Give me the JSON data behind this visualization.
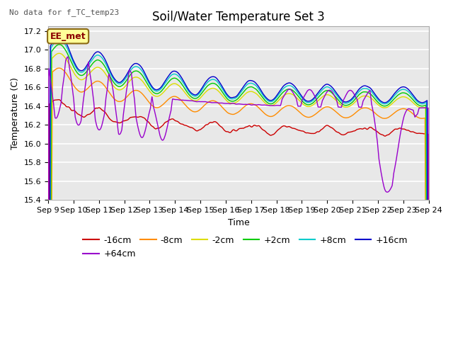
{
  "title": "Soil/Water Temperature Set 3",
  "xlabel": "Time",
  "ylabel": "Temperature (C)",
  "no_data_text": "No data for f_TC_temp23",
  "annotation_text": "EE_met",
  "ylim": [
    15.4,
    17.25
  ],
  "xlim": [
    0,
    15
  ],
  "x_tick_labels": [
    "Sep 9",
    "Sep 10",
    "Sep 11",
    "Sep 12",
    "Sep 13",
    "Sep 14",
    "Sep 15",
    "Sep 16",
    "Sep 17",
    "Sep 18",
    "Sep 19",
    "Sep 20",
    "Sep 21",
    "Sep 22",
    "Sep 23",
    "Sep 24"
  ],
  "series_colors": {
    "-16cm": "#cc0000",
    "-8cm": "#ff8c00",
    "-2cm": "#dddd00",
    "+2cm": "#00cc00",
    "+8cm": "#00cccc",
    "+16cm": "#0000cc",
    "+64cm": "#9900cc"
  },
  "plot_bg_color": "#e8e8e8",
  "grid_color": "white",
  "title_fontsize": 12,
  "axis_label_fontsize": 9,
  "tick_fontsize": 8,
  "legend_fontsize": 9,
  "annotation_fontsize": 9
}
